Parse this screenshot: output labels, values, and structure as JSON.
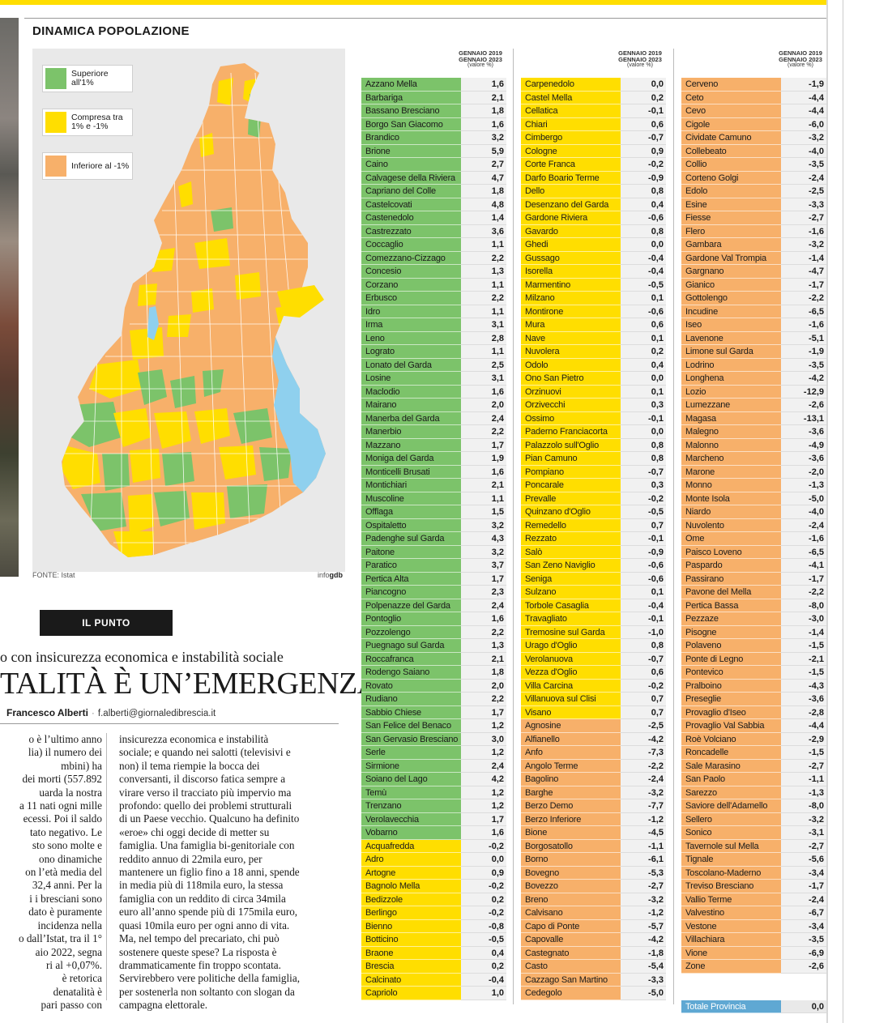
{
  "section_title": "DINAMICA POPOLAZIONE",
  "legend": [
    {
      "label": "Superiore all'1%",
      "color": "#7cc36a"
    },
    {
      "label": "Compresa tra 1% e -1%",
      "color": "#ffde00"
    },
    {
      "label": "Inferiore al -1%",
      "color": "#f7b06a"
    }
  ],
  "source": "FONTE: Istat",
  "credit_prefix": "info",
  "credit_bold": "gdb",
  "punto_label": "IL PUNTO",
  "subtitle": "o con insicurezza economica e instabilità sociale",
  "headline": "TALITÀ È UN’EMERGENZA",
  "author": "Francesco Alberti",
  "author_sep": "·",
  "author_email": "f.alberti@giornaledibrescia.it",
  "article_col1": [
    "o è l’ultimo anno",
    "lia) il numero dei",
    "mbini) ha",
    "dei morti (557.892",
    "uarda la nostra",
    "a 11 nati ogni mille",
    "ecessi. Poi il saldo",
    "tato negativo. Le",
    "sto sono molte e",
    "ono dinamiche",
    "on l’età media del",
    "32,4 anni. Per la",
    "i i bresciani sono",
    "dato è puramente",
    "incidenza nella",
    "o dall’Istat, tra il 1°",
    "aio 2022, segna",
    "ri al +0,07%.",
    "è retorica",
    "denatalità è",
    "pari passo con"
  ],
  "article_col2": [
    "insicurezza economica e instabilità",
    "sociale; e quando nei salotti (televisivi e",
    "non) il tema riempie la bocca dei",
    "conversanti, il discorso fatica sempre a",
    "virare verso il tracciato più impervio ma",
    "profondo: quello dei problemi strutturali",
    "di un Paese vecchio. Qualcuno ha definito",
    "«eroe» chi oggi decide di metter su",
    "famiglia. Una famiglia bi-genitoriale con",
    "reddito annuo di 22mila euro, per",
    "mantenere un figlio fino a 18 anni, spende",
    "in media più di 118mila euro, la stessa",
    "famiglia con un reddito di circa 34mila",
    "euro all’anno spende più di 175mila euro,",
    "quasi 10mila euro per ogni anno di vita.",
    "Ma, nel tempo del precariato, chi può",
    "sostenere queste spese? La risposta è",
    "drammaticamente fin troppo scontata.",
    "Servirebbero vere politiche della famiglia,",
    "per sostenerla non soltanto con slogan da",
    "campagna elettorale."
  ],
  "table_header": {
    "line1": "GENNAIO 2019",
    "line2": "GENNAIO 2023",
    "unit": "(valore %)"
  },
  "table_columns": [
    [
      [
        "Azzano Mella",
        "1,6",
        "g"
      ],
      [
        "Barbariga",
        "2,1",
        "g"
      ],
      [
        "Bassano Bresciano",
        "1,8",
        "g"
      ],
      [
        "Borgo San Giacomo",
        "1,6",
        "g"
      ],
      [
        "Brandico",
        "3,2",
        "g"
      ],
      [
        "Brione",
        "5,9",
        "g"
      ],
      [
        "Caino",
        "2,7",
        "g"
      ],
      [
        "Calvagese della Riviera",
        "4,7",
        "g"
      ],
      [
        "Capriano del Colle",
        "1,8",
        "g"
      ],
      [
        "Castelcovati",
        "4,8",
        "g"
      ],
      [
        "Castenedolo",
        "1,4",
        "g"
      ],
      [
        "Castrezzato",
        "3,6",
        "g"
      ],
      [
        "Coccaglio",
        "1,1",
        "g"
      ],
      [
        "Comezzano-Cizzago",
        "2,2",
        "g"
      ],
      [
        "Concesio",
        "1,3",
        "g"
      ],
      [
        "Corzano",
        "1,1",
        "g"
      ],
      [
        "Erbusco",
        "2,2",
        "g"
      ],
      [
        "Idro",
        "1,1",
        "g"
      ],
      [
        "Irma",
        "3,1",
        "g"
      ],
      [
        "Leno",
        "2,8",
        "g"
      ],
      [
        "Lograto",
        "1,1",
        "g"
      ],
      [
        "Lonato del Garda",
        "2,5",
        "g"
      ],
      [
        "Losine",
        "3,1",
        "g"
      ],
      [
        "Maclodio",
        "1,6",
        "g"
      ],
      [
        "Mairano",
        "2,0",
        "g"
      ],
      [
        "Manerba del Garda",
        "2,4",
        "g"
      ],
      [
        "Manerbio",
        "2,2",
        "g"
      ],
      [
        "Mazzano",
        "1,7",
        "g"
      ],
      [
        "Moniga del Garda",
        "1,9",
        "g"
      ],
      [
        "Monticelli Brusati",
        "1,6",
        "g"
      ],
      [
        "Montichiari",
        "2,1",
        "g"
      ],
      [
        "Muscoline",
        "1,1",
        "g"
      ],
      [
        "Offlaga",
        "1,5",
        "g"
      ],
      [
        "Ospitaletto",
        "3,2",
        "g"
      ],
      [
        "Padenghe sul Garda",
        "4,3",
        "g"
      ],
      [
        "Paitone",
        "3,2",
        "g"
      ],
      [
        "Paratico",
        "3,7",
        "g"
      ],
      [
        "Pertica Alta",
        "1,7",
        "g"
      ],
      [
        "Piancogno",
        "2,3",
        "g"
      ],
      [
        "Polpenazze del Garda",
        "2,4",
        "g"
      ],
      [
        "Pontoglio",
        "1,6",
        "g"
      ],
      [
        "Pozzolengo",
        "2,2",
        "g"
      ],
      [
        "Puegnago sul Garda",
        "1,3",
        "g"
      ],
      [
        "Roccafranca",
        "2,1",
        "g"
      ],
      [
        "Rodengo Saiano",
        "1,8",
        "g"
      ],
      [
        "Rovato",
        "2,0",
        "g"
      ],
      [
        "Rudiano",
        "2,2",
        "g"
      ],
      [
        "Sabbio Chiese",
        "1,7",
        "g"
      ],
      [
        "San Felice del Benaco",
        "1,2",
        "g"
      ],
      [
        "San Gervasio Bresciano",
        "3,0",
        "g"
      ],
      [
        "Serle",
        "1,2",
        "g"
      ],
      [
        "Sirmione",
        "2,4",
        "g"
      ],
      [
        "Soiano del Lago",
        "4,2",
        "g"
      ],
      [
        "Temù",
        "1,2",
        "g"
      ],
      [
        "Trenzano",
        "1,2",
        "g"
      ],
      [
        "Verolavecchia",
        "1,7",
        "g"
      ],
      [
        "Vobarno",
        "1,6",
        "g"
      ],
      [
        "Acquafredda",
        "-0,2",
        "y"
      ],
      [
        "Adro",
        "0,0",
        "y"
      ],
      [
        "Artogne",
        "0,9",
        "y"
      ],
      [
        "Bagnolo Mella",
        "-0,2",
        "y"
      ],
      [
        "Bedizzole",
        "0,2",
        "y"
      ],
      [
        "Berlingo",
        "-0,2",
        "y"
      ],
      [
        "Bienno",
        "-0,8",
        "y"
      ],
      [
        "Botticino",
        "-0,5",
        "y"
      ],
      [
        "Braone",
        "0,4",
        "y"
      ],
      [
        "Brescia",
        "0,2",
        "y"
      ],
      [
        "Calcinato",
        "-0,4",
        "y"
      ],
      [
        "Capriolo",
        "1,0",
        "y"
      ]
    ],
    [
      [
        "Carpenedolo",
        "0,0",
        "y"
      ],
      [
        "Castel Mella",
        "0,2",
        "y"
      ],
      [
        "Cellatica",
        "-0,1",
        "y"
      ],
      [
        "Chiari",
        "0,6",
        "y"
      ],
      [
        "Cimbergo",
        "-0,7",
        "y"
      ],
      [
        "Cologne",
        "0,9",
        "y"
      ],
      [
        "Corte Franca",
        "-0,2",
        "y"
      ],
      [
        "Darfo Boario Terme",
        "-0,9",
        "y"
      ],
      [
        "Dello",
        "0,8",
        "y"
      ],
      [
        "Desenzano del Garda",
        "0,4",
        "y"
      ],
      [
        "Gardone Riviera",
        "-0,6",
        "y"
      ],
      [
        "Gavardo",
        "0,8",
        "y"
      ],
      [
        "Ghedi",
        "0,0",
        "y"
      ],
      [
        "Gussago",
        "-0,4",
        "y"
      ],
      [
        "Isorella",
        "-0,4",
        "y"
      ],
      [
        "Marmentino",
        "-0,5",
        "y"
      ],
      [
        "Milzano",
        "0,1",
        "y"
      ],
      [
        "Montirone",
        "-0,6",
        "y"
      ],
      [
        "Mura",
        "0,6",
        "y"
      ],
      [
        "Nave",
        "0,1",
        "y"
      ],
      [
        "Nuvolera",
        "0,2",
        "y"
      ],
      [
        "Odolo",
        "0,4",
        "y"
      ],
      [
        "Ono San Pietro",
        "0,0",
        "y"
      ],
      [
        "Orzinuovi",
        "0,1",
        "y"
      ],
      [
        "Orzivecchi",
        "0,3",
        "y"
      ],
      [
        "Ossimo",
        "-0,1",
        "y"
      ],
      [
        "Paderno Franciacorta",
        "0,0",
        "y"
      ],
      [
        "Palazzolo sull'Oglio",
        "0,8",
        "y"
      ],
      [
        "Pian Camuno",
        "0,8",
        "y"
      ],
      [
        "Pompiano",
        "-0,7",
        "y"
      ],
      [
        "Poncarale",
        "0,3",
        "y"
      ],
      [
        "Prevalle",
        "-0,2",
        "y"
      ],
      [
        "Quinzano d'Oglio",
        "-0,5",
        "y"
      ],
      [
        "Remedello",
        "0,7",
        "y"
      ],
      [
        "Rezzato",
        "-0,1",
        "y"
      ],
      [
        "Salò",
        "-0,9",
        "y"
      ],
      [
        "San Zeno Naviglio",
        "-0,6",
        "y"
      ],
      [
        "Seniga",
        "-0,6",
        "y"
      ],
      [
        "Sulzano",
        "0,1",
        "y"
      ],
      [
        "Torbole Casaglia",
        "-0,4",
        "y"
      ],
      [
        "Travagliato",
        "-0,1",
        "y"
      ],
      [
        "Tremosine sul Garda",
        "-1,0",
        "y"
      ],
      [
        "Urago d'Oglio",
        "0,8",
        "y"
      ],
      [
        "Verolanuova",
        "-0,7",
        "y"
      ],
      [
        "Vezza d'Oglio",
        "0,6",
        "y"
      ],
      [
        "Villa Carcina",
        "-0,2",
        "y"
      ],
      [
        "Villanuova sul Clisi",
        "0,7",
        "y"
      ],
      [
        "Visano",
        "0,7",
        "y"
      ],
      [
        "Agnosine",
        "-2,5",
        "o"
      ],
      [
        "Alfianello",
        "-4,2",
        "o"
      ],
      [
        "Anfo",
        "-7,3",
        "o"
      ],
      [
        "Angolo Terme",
        "-2,2",
        "o"
      ],
      [
        "Bagolino",
        "-2,4",
        "o"
      ],
      [
        "Barghe",
        "-3,2",
        "o"
      ],
      [
        "Berzo Demo",
        "-7,7",
        "o"
      ],
      [
        "Berzo Inferiore",
        "-1,2",
        "o"
      ],
      [
        "Bione",
        "-4,5",
        "o"
      ],
      [
        "Borgosatollo",
        "-1,1",
        "o"
      ],
      [
        "Borno",
        "-6,1",
        "o"
      ],
      [
        "Bovegno",
        "-5,3",
        "o"
      ],
      [
        "Bovezzo",
        "-2,7",
        "o"
      ],
      [
        "Breno",
        "-3,2",
        "o"
      ],
      [
        "Calvisano",
        "-1,2",
        "o"
      ],
      [
        "Capo di Ponte",
        "-5,7",
        "o"
      ],
      [
        "Capovalle",
        "-4,2",
        "o"
      ],
      [
        "Castegnato",
        "-1,8",
        "o"
      ],
      [
        "Casto",
        "-5,4",
        "o"
      ],
      [
        "Cazzago San Martino",
        "-3,3",
        "o"
      ],
      [
        "Cedegolo",
        "-5,0",
        "o"
      ]
    ],
    [
      [
        "Cerveno",
        "-1,9",
        "o"
      ],
      [
        "Ceto",
        "-4,4",
        "o"
      ],
      [
        "Cevo",
        "-4,4",
        "o"
      ],
      [
        "Cigole",
        "-6,0",
        "o"
      ],
      [
        "Cividate Camuno",
        "-3,2",
        "o"
      ],
      [
        "Collebeato",
        "-4,0",
        "o"
      ],
      [
        "Collio",
        "-3,5",
        "o"
      ],
      [
        "Corteno Golgi",
        "-2,4",
        "o"
      ],
      [
        "Edolo",
        "-2,5",
        "o"
      ],
      [
        "Esine",
        "-3,3",
        "o"
      ],
      [
        "Fiesse",
        "-2,7",
        "o"
      ],
      [
        "Flero",
        "-1,6",
        "o"
      ],
      [
        "Gambara",
        "-3,2",
        "o"
      ],
      [
        "Gardone Val Trompia",
        "-1,4",
        "o"
      ],
      [
        "Gargnano",
        "-4,7",
        "o"
      ],
      [
        "Gianico",
        "-1,7",
        "o"
      ],
      [
        "Gottolengo",
        "-2,2",
        "o"
      ],
      [
        "Incudine",
        "-6,5",
        "o"
      ],
      [
        "Iseo",
        "-1,6",
        "o"
      ],
      [
        "Lavenone",
        "-5,1",
        "o"
      ],
      [
        "Limone sul Garda",
        "-1,9",
        "o"
      ],
      [
        "Lodrino",
        "-3,5",
        "o"
      ],
      [
        "Longhena",
        "-4,2",
        "o"
      ],
      [
        "Lozio",
        "-12,9",
        "o"
      ],
      [
        "Lumezzane",
        "-2,6",
        "o"
      ],
      [
        "Magasa",
        "-13,1",
        "o"
      ],
      [
        "Malegno",
        "-3,6",
        "o"
      ],
      [
        "Malonno",
        "-4,9",
        "o"
      ],
      [
        "Marcheno",
        "-3,6",
        "o"
      ],
      [
        "Marone",
        "-2,0",
        "o"
      ],
      [
        "Monno",
        "-1,3",
        "o"
      ],
      [
        "Monte Isola",
        "-5,0",
        "o"
      ],
      [
        "Niardo",
        "-4,0",
        "o"
      ],
      [
        "Nuvolento",
        "-2,4",
        "o"
      ],
      [
        "Ome",
        "-1,6",
        "o"
      ],
      [
        "Paisco Loveno",
        "-6,5",
        "o"
      ],
      [
        "Paspardo",
        "-4,1",
        "o"
      ],
      [
        "Passirano",
        "-1,7",
        "o"
      ],
      [
        "Pavone del Mella",
        "-2,2",
        "o"
      ],
      [
        "Pertica Bassa",
        "-8,0",
        "o"
      ],
      [
        "Pezzaze",
        "-3,0",
        "o"
      ],
      [
        "Pisogne",
        "-1,4",
        "o"
      ],
      [
        "Polaveno",
        "-1,5",
        "o"
      ],
      [
        "Ponte di Legno",
        "-2,1",
        "o"
      ],
      [
        "Pontevico",
        "-1,5",
        "o"
      ],
      [
        "Pralboino",
        "-4,3",
        "o"
      ],
      [
        "Preseglie",
        "-3,6",
        "o"
      ],
      [
        "Provaglio d'Iseo",
        "-2,8",
        "o"
      ],
      [
        "Provaglio Val Sabbia",
        "-4,4",
        "o"
      ],
      [
        "Roè Volciano",
        "-2,9",
        "o"
      ],
      [
        "Roncadelle",
        "-1,5",
        "o"
      ],
      [
        "Sale Marasino",
        "-2,7",
        "o"
      ],
      [
        "San Paolo",
        "-1,1",
        "o"
      ],
      [
        "Sarezzo",
        "-1,3",
        "o"
      ],
      [
        "Saviore dell'Adamello",
        "-8,0",
        "o"
      ],
      [
        "Sellero",
        "-3,2",
        "o"
      ],
      [
        "Sonico",
        "-3,1",
        "o"
      ],
      [
        "Tavernole sul Mella",
        "-2,7",
        "o"
      ],
      [
        "Tignale",
        "-5,6",
        "o"
      ],
      [
        "Toscolano-Maderno",
        "-3,4",
        "o"
      ],
      [
        "Treviso Bresciano",
        "-1,7",
        "o"
      ],
      [
        "Vallio Terme",
        "-2,4",
        "o"
      ],
      [
        "Valvestino",
        "-6,7",
        "o"
      ],
      [
        "Vestone",
        "-3,4",
        "o"
      ],
      [
        "Villachiara",
        "-3,5",
        "o"
      ],
      [
        "Vione",
        "-6,9",
        "o"
      ],
      [
        "Zone",
        "-2,6",
        "o"
      ]
    ]
  ],
  "total": {
    "label": "Totale Provincia",
    "value": "0,0"
  },
  "map_colors": {
    "green": "#7cc36a",
    "yellow": "#ffde00",
    "orange": "#f7b06a",
    "lake": "#8fd0ee",
    "bg": "#e9e9e9"
  }
}
